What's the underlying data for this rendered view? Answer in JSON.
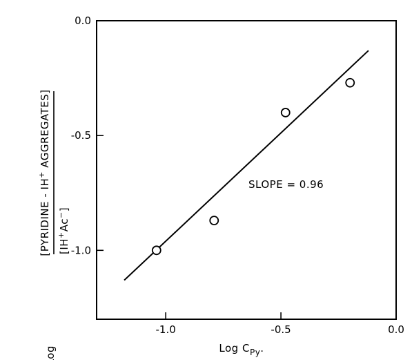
{
  "chart_data": {
    "type": "scatter",
    "x_ticks": [
      "-1.0",
      "-0.5",
      "0.0"
    ],
    "y_ticks": [
      "0.0",
      "-0.5",
      "-1.0"
    ],
    "xlim": [
      -1.3,
      0.0
    ],
    "ylim": [
      -1.3,
      0.0
    ],
    "grid": false,
    "xlabel": "Log C",
    "xlabel_sub": "Py",
    "xlabel_suffix": ".",
    "ylabel_log": "Log",
    "ylabel_numerator_pre": "[PYRIDINE - IH",
    "ylabel_numerator_sup": "+",
    "ylabel_numerator_post": " AGGREGATES]",
    "ylabel_denominator_pre": "[IH",
    "ylabel_denominator_sup": "+",
    "ylabel_denominator_post": "Ac",
    "ylabel_denominator_sup2": "−",
    "ylabel_denominator_end": "]",
    "annotation": "SLOPE = 0.96",
    "points": [
      {
        "x": -1.04,
        "y": -1.0
      },
      {
        "x": -0.79,
        "y": -0.87
      },
      {
        "x": -0.48,
        "y": -0.4
      },
      {
        "x": -0.2,
        "y": -0.27
      }
    ],
    "fit_line": {
      "x": [
        -1.18,
        -0.12
      ],
      "y": [
        -1.13,
        -0.13
      ]
    }
  }
}
